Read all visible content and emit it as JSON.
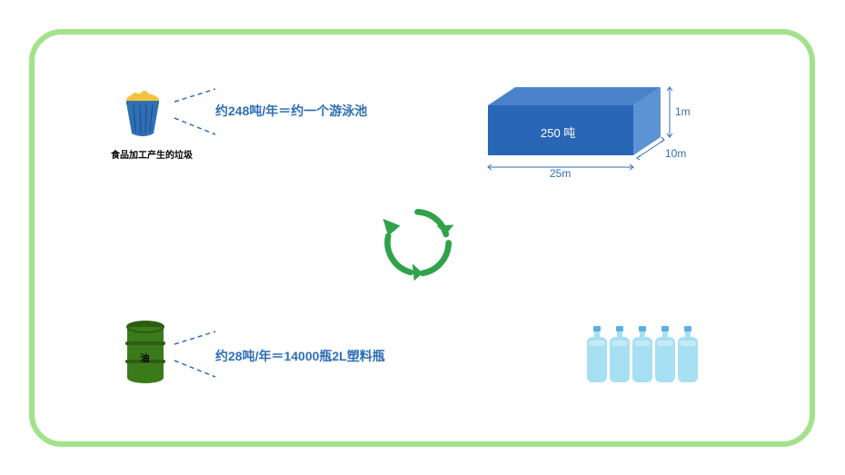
{
  "frame": {
    "border_color": "#a3e28a",
    "border_width": 6,
    "radius": 36
  },
  "colors": {
    "stat_text": "#2f6fb6",
    "dim_text": "#2f6fb6",
    "dashed": "#2f6fb6",
    "box_front": "#2a66b6",
    "box_top": "#4a82c9",
    "box_side": "#5c93d4",
    "bottle_body": "#a7dff3",
    "bottle_cap": "#5ab0e6",
    "barrel_body": "#3b7a1a",
    "barrel_band": "#2d5d13",
    "trash_body": "#2f6fb6",
    "trash_content": "#f3c33b",
    "recycle": "#2fa24b"
  },
  "trashbin": {
    "caption": "食品加工产生的垃圾"
  },
  "barrel": {
    "caption": "油"
  },
  "stat1": {
    "text": "约248吨/年＝约一个游泳池"
  },
  "stat2": {
    "text": "约28吨/年＝14000瓶2L塑料瓶"
  },
  "box": {
    "center_label": "250 吨",
    "width_label": "25m",
    "depth_label": "10m",
    "height_label": "1m"
  },
  "bottles": {
    "count": 5
  }
}
